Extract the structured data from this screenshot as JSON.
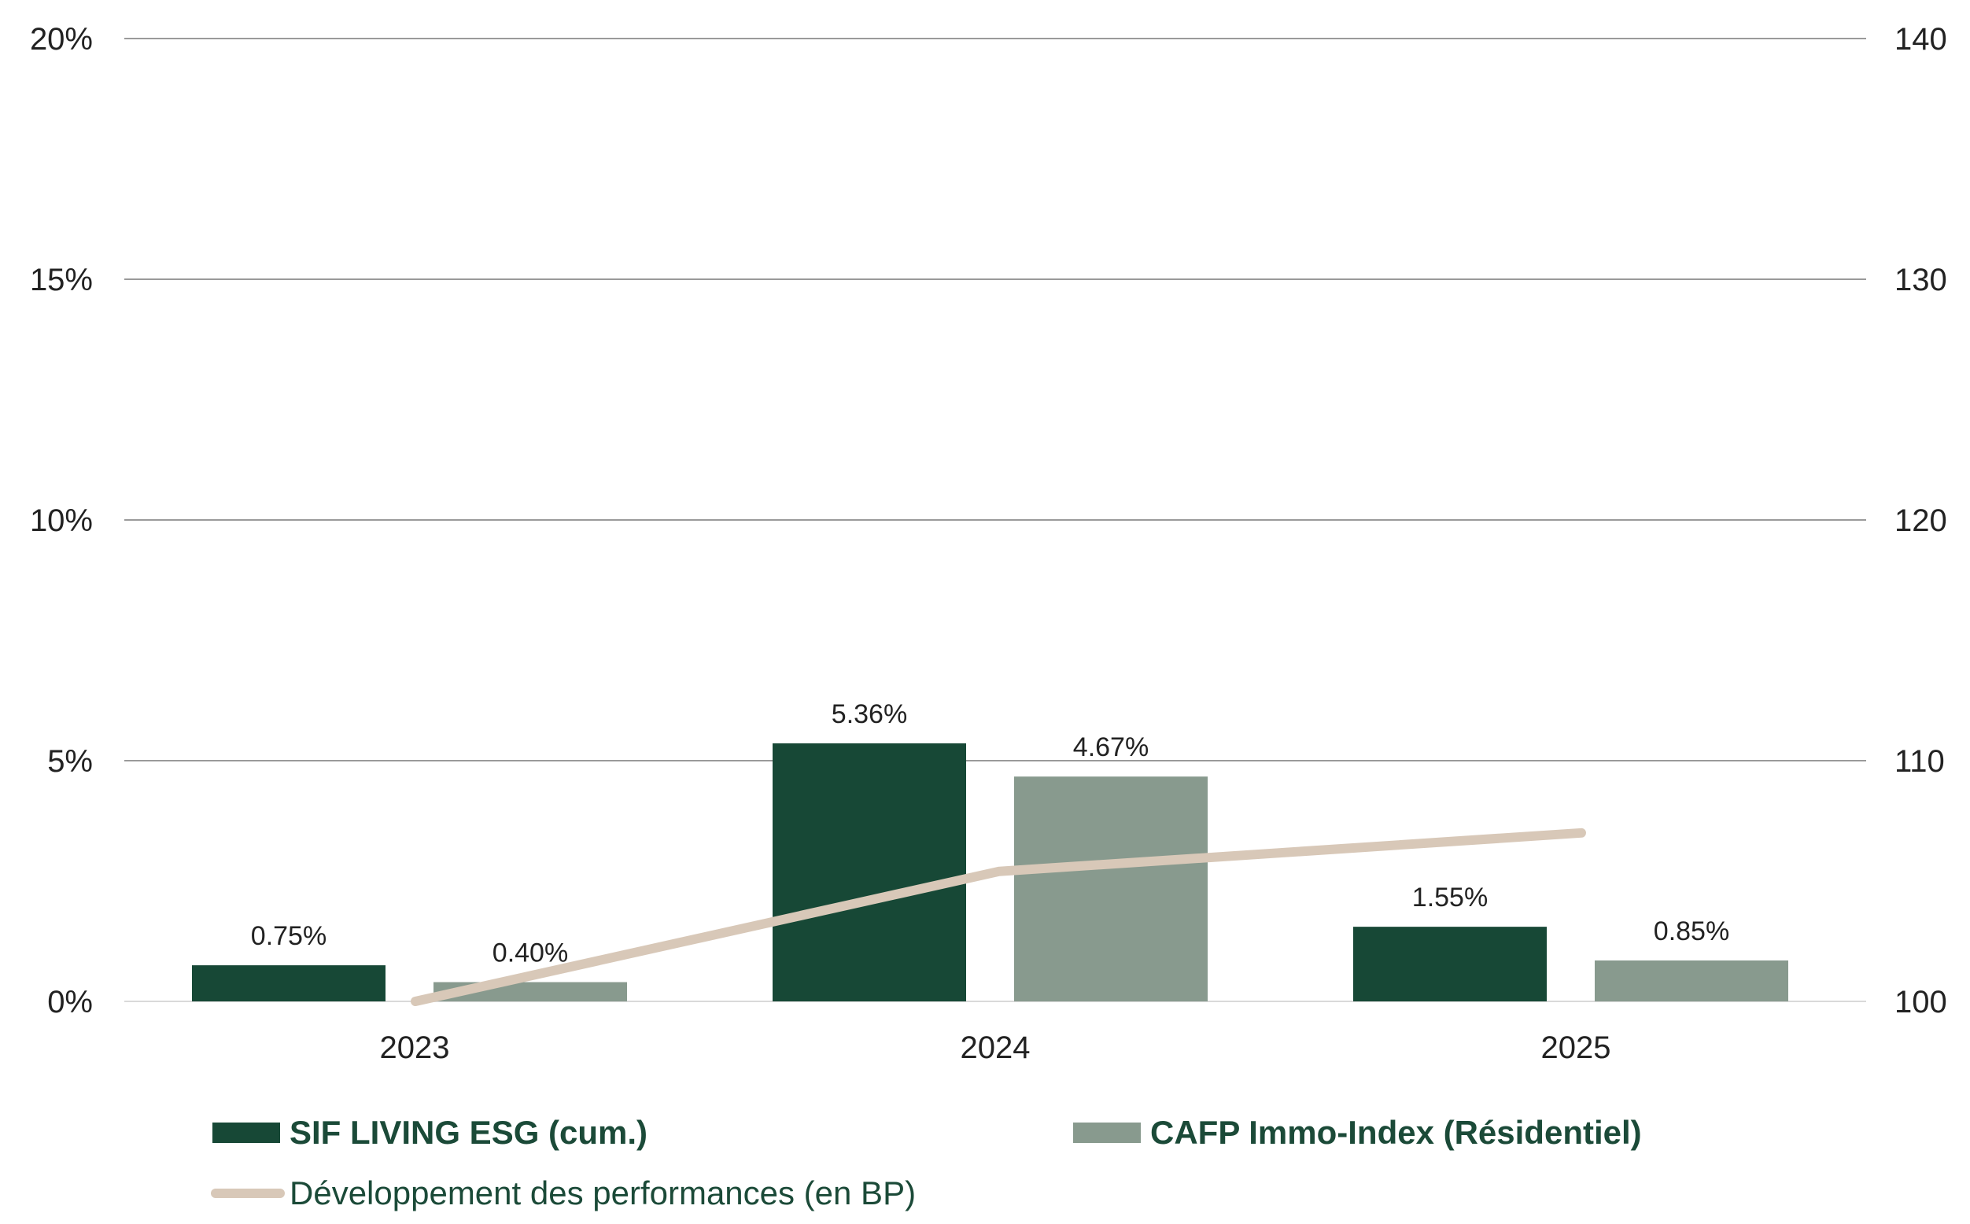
{
  "chart_data": {
    "type": "bar",
    "categories": [
      "2023",
      "2024",
      "2025"
    ],
    "series": [
      {
        "name": "SIF LIVING ESG (cum.)",
        "type": "bar",
        "axis": "left",
        "color": "#174836",
        "values": [
          0.75,
          5.36,
          1.55
        ],
        "labels": [
          "0.75%",
          "5.36%",
          "1.55%"
        ]
      },
      {
        "name": "CAFP Immo-Index (Résidentiel)",
        "type": "bar",
        "axis": "left",
        "color": "#889a8e",
        "values": [
          0.4,
          4.67,
          0.85
        ],
        "labels": [
          "0.40%",
          "4.67%",
          "0.85%"
        ]
      },
      {
        "name": "Développement des performances (en BP)",
        "type": "line",
        "axis": "right",
        "color": "#d8c8b8",
        "values": [
          100,
          105.4,
          107.0
        ]
      }
    ],
    "y_left": {
      "ylim": [
        0,
        20
      ],
      "ticks": [
        0,
        5,
        10,
        15,
        20
      ],
      "tick_labels": [
        "0%",
        "5%",
        "10%",
        "15%",
        "20%"
      ]
    },
    "y_right": {
      "ylim": [
        100,
        140
      ],
      "ticks": [
        100,
        110,
        120,
        130,
        140
      ],
      "tick_labels": [
        "100",
        "110",
        "120",
        "130",
        "140"
      ]
    },
    "grid": true,
    "legend_position": "bottom",
    "xlabel": "",
    "ylabel": ""
  }
}
